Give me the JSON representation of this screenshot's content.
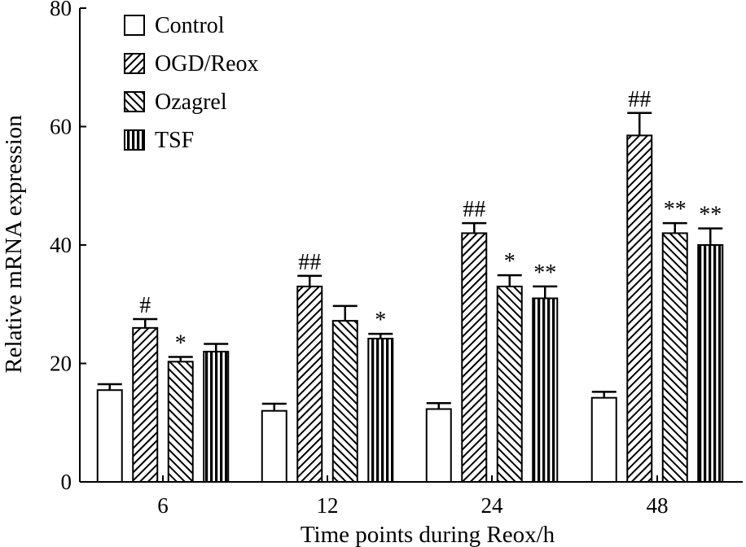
{
  "chart_data": {
    "type": "bar",
    "title": "",
    "xlabel": "Time points during Reox/h",
    "ylabel": "Relative mRNA expression",
    "ylim": [
      0,
      80
    ],
    "yticks": [
      0,
      20,
      40,
      60,
      80
    ],
    "grid": false,
    "legend_position": "top-left",
    "categories": [
      "6",
      "12",
      "24",
      "48"
    ],
    "series": [
      {
        "name": "Control",
        "pattern": "none",
        "values": [
          15.5,
          12,
          12.3,
          14.2
        ],
        "errors": [
          1.0,
          1.2,
          1.0,
          1.0
        ],
        "annotations": [
          "",
          "",
          "",
          ""
        ]
      },
      {
        "name": "OGD/Reox",
        "pattern": "backslash",
        "values": [
          26,
          33,
          42,
          58.5
        ],
        "errors": [
          1.5,
          1.8,
          1.7,
          3.8
        ],
        "annotations": [
          "#",
          "##",
          "##",
          "##"
        ]
      },
      {
        "name": "Ozagrel",
        "pattern": "slash",
        "values": [
          20.3,
          27.2,
          33,
          42
        ],
        "errors": [
          0.8,
          2.5,
          1.9,
          1.7
        ],
        "annotations": [
          "*",
          "",
          "*",
          "**"
        ]
      },
      {
        "name": "TSF",
        "pattern": "vertical",
        "values": [
          22,
          24.2,
          31,
          40
        ],
        "errors": [
          1.3,
          0.8,
          2.0,
          2.8
        ],
        "annotations": [
          "",
          "*",
          "**",
          "**"
        ]
      }
    ]
  }
}
